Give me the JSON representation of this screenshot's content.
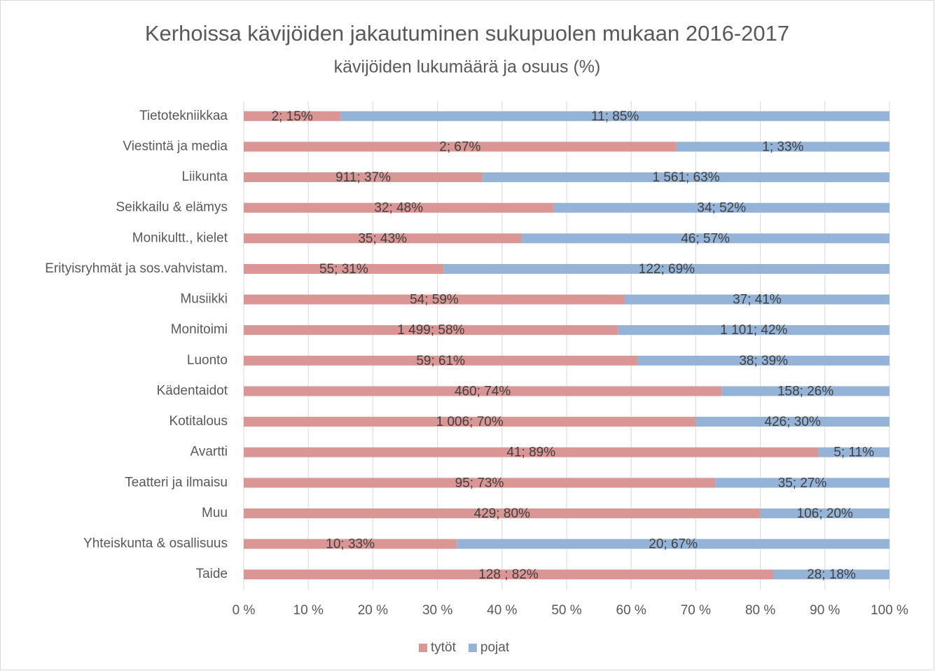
{
  "chart_data": {
    "type": "bar",
    "orientation": "horizontal",
    "stacked": "percent",
    "title": "Kerhoissa kävijöiden jakautuminen sukupuolen mukaan 2016-2017",
    "subtitle": "kävijöiden lukumäärä ja osuus (%)",
    "categories": [
      "Tietotekniikkaa",
      "Viestintä ja media",
      "Liikunta",
      "Seikkailu & elämys",
      "Monikultt., kielet",
      "Erityisryhmät ja sos.vahvistam.",
      "Musiikki",
      "Monitoimi",
      "Luonto",
      "Kädentaidot",
      "Kotitalous",
      "Avartti",
      "Teatteri ja ilmaisu",
      "Muu",
      "Yhteiskunta & osallisuus",
      "Taide"
    ],
    "series": [
      {
        "name": "tytöt",
        "color": "#d99694",
        "values": [
          15,
          67,
          37,
          48,
          43,
          31,
          59,
          58,
          61,
          74,
          70,
          89,
          73,
          80,
          33,
          82
        ],
        "value_labels": [
          "2; 15%",
          "2; 67%",
          "911; 37%",
          "32; 48%",
          "35; 43%",
          "55; 31%",
          "54; 59%",
          "1 499; 58%",
          "59; 61%",
          "460; 74%",
          "1 006; 70%",
          "41; 89%",
          "95; 73%",
          "429; 80%",
          "10; 33%",
          "128 ; 82%"
        ]
      },
      {
        "name": "pojat",
        "color": "#95b3d7",
        "values": [
          85,
          33,
          63,
          52,
          57,
          69,
          41,
          42,
          39,
          26,
          30,
          11,
          27,
          20,
          67,
          18
        ],
        "value_labels": [
          "11; 85%",
          "1; 33%",
          "1 561; 63%",
          "34; 52%",
          "46; 57%",
          "122; 69%",
          "37; 41%",
          "1 101; 42%",
          "38; 39%",
          "158; 26%",
          "426; 30%",
          "5; 11%",
          "35; 27%",
          "106; 20%",
          "20; 67%",
          "28; 18%"
        ]
      }
    ],
    "xlim": [
      0,
      100
    ],
    "xticks": [
      {
        "value": 0,
        "label": "0 %"
      },
      {
        "value": 10,
        "label": "10 %"
      },
      {
        "value": 20,
        "label": "20 %"
      },
      {
        "value": 30,
        "label": "30 %"
      },
      {
        "value": 40,
        "label": "40 %"
      },
      {
        "value": 50,
        "label": "50 %"
      },
      {
        "value": 60,
        "label": "60 %"
      },
      {
        "value": 70,
        "label": "70 %"
      },
      {
        "value": 80,
        "label": "80 %"
      },
      {
        "value": 90,
        "label": "90 %"
      },
      {
        "value": 100,
        "label": "100 %"
      }
    ],
    "grid": true,
    "legend": "bottom"
  }
}
